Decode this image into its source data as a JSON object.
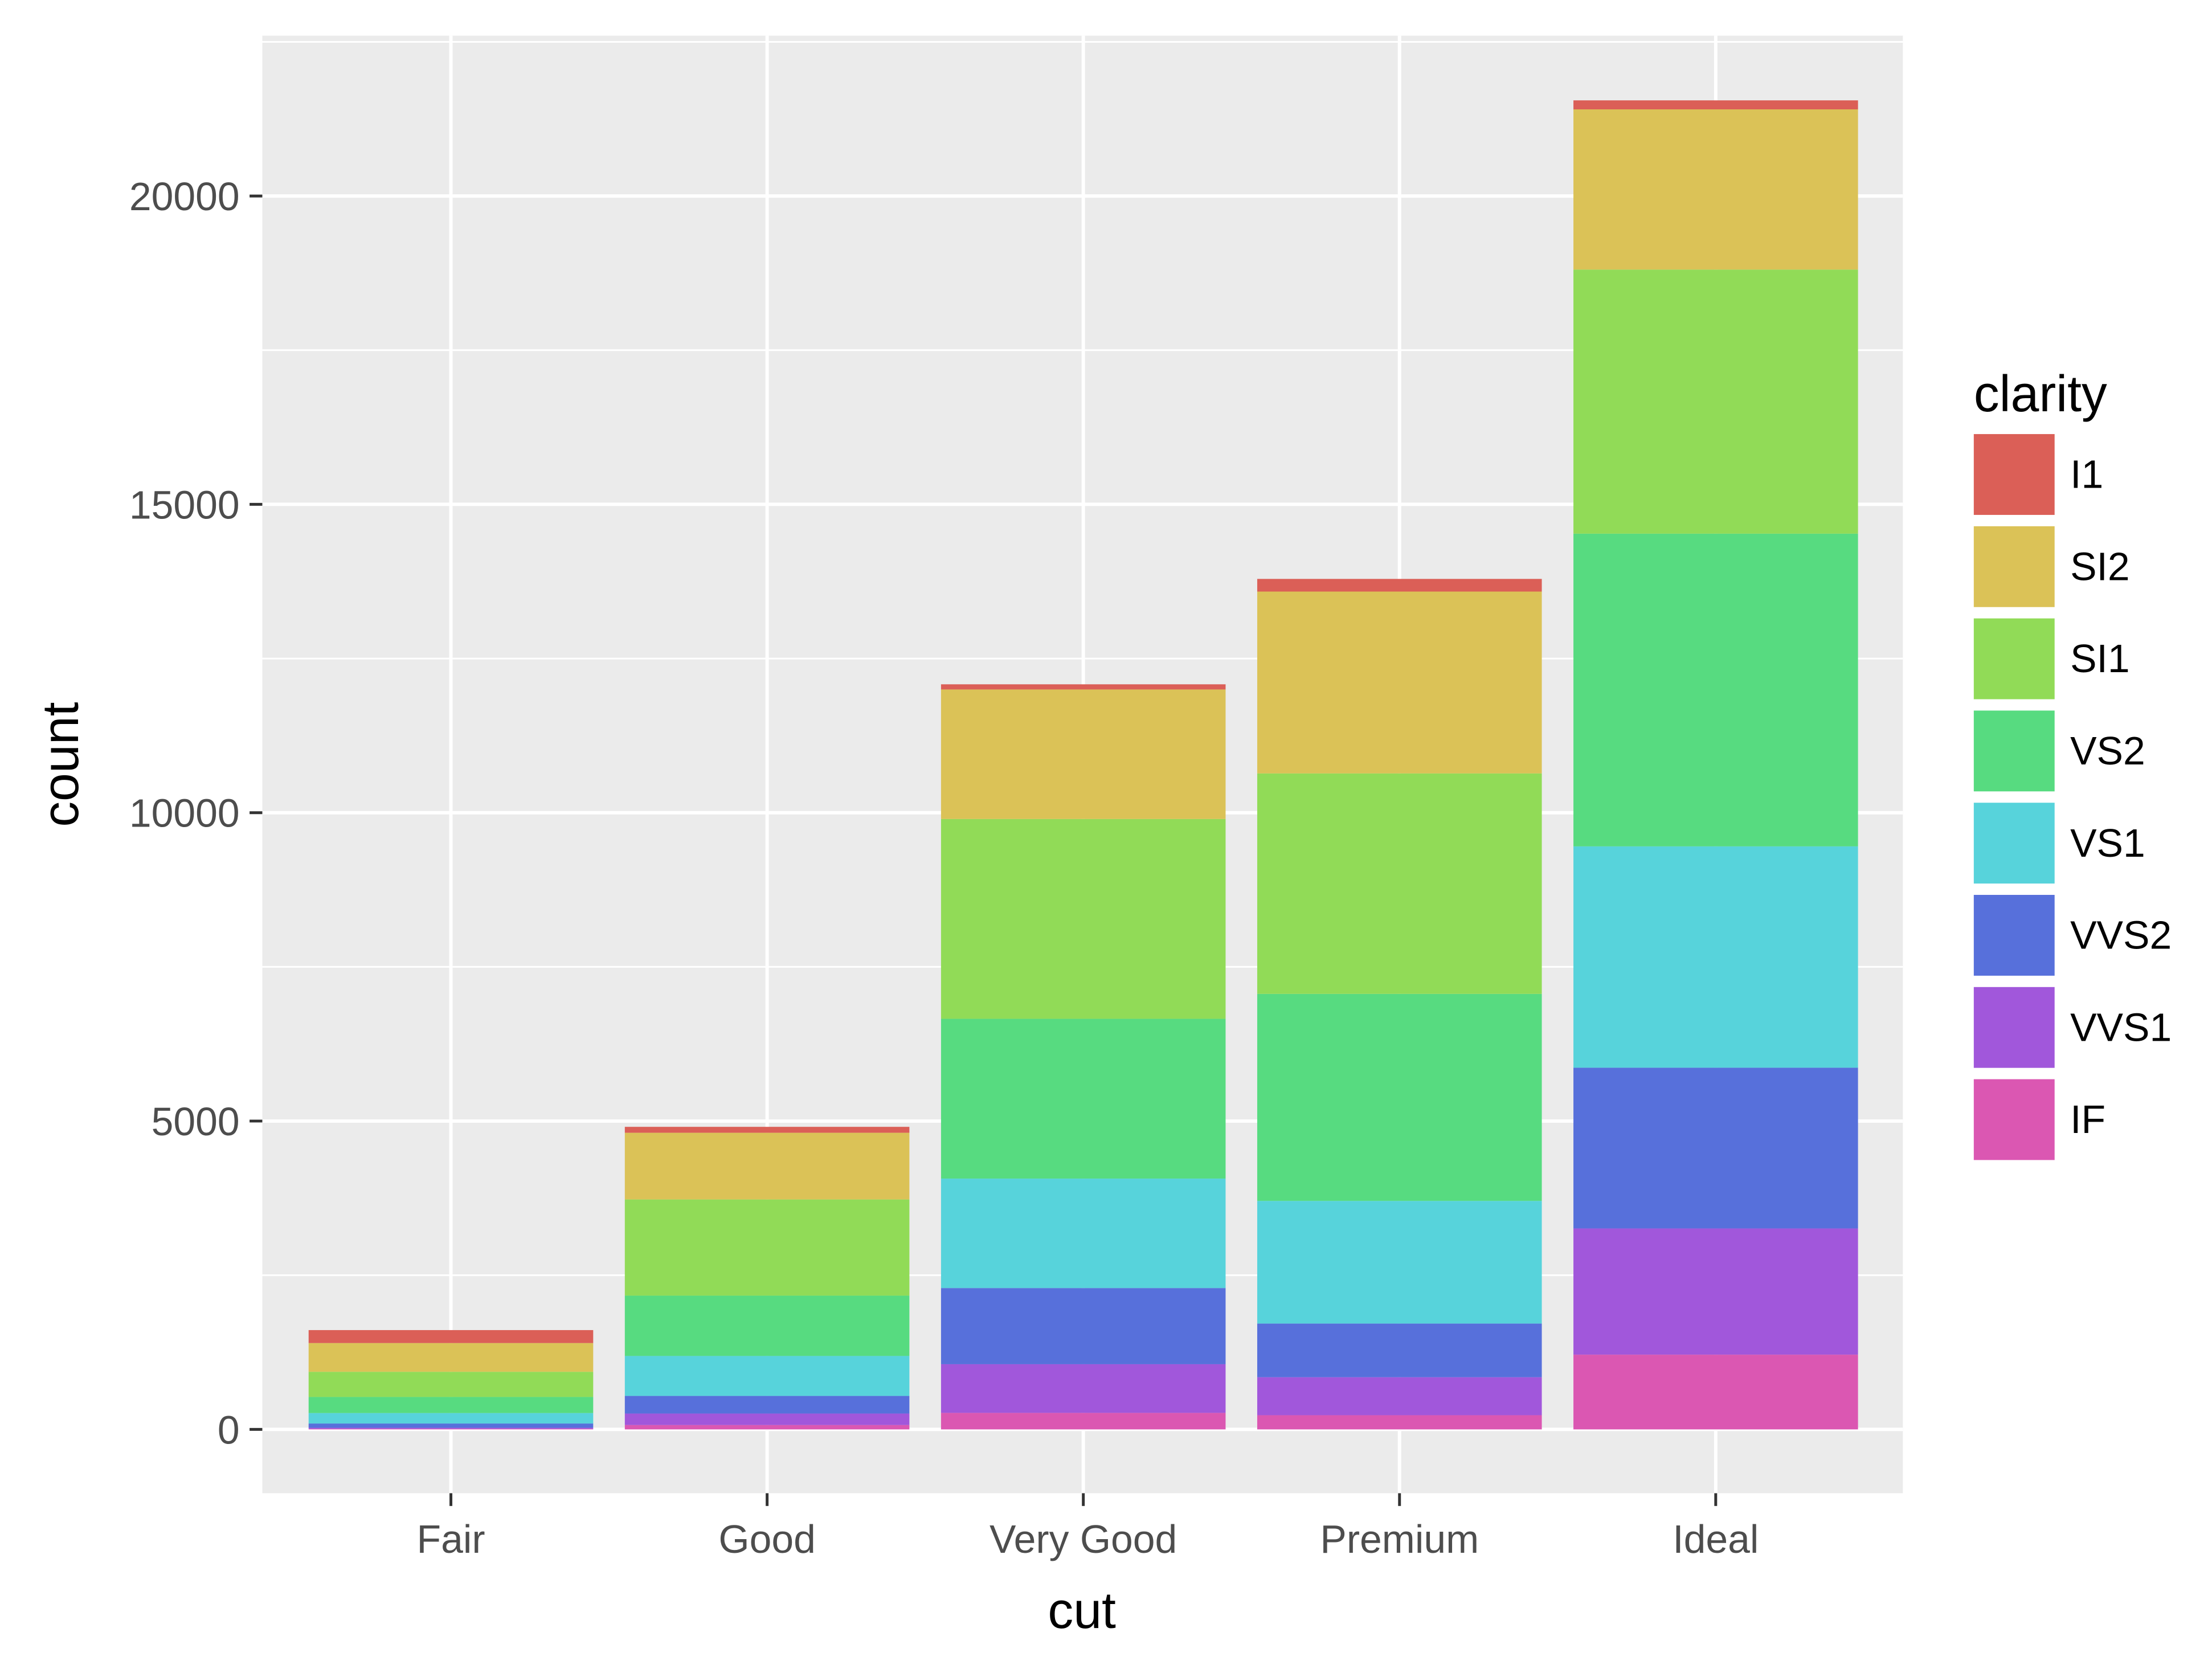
{
  "chart_data": {
    "type": "bar",
    "stacked": true,
    "title": "",
    "xlabel": "cut",
    "ylabel": "count",
    "categories": [
      "Fair",
      "Good",
      "Very Good",
      "Premium",
      "Ideal"
    ],
    "ylim": [
      -1035,
      22600
    ],
    "yticks": [
      0,
      5000,
      10000,
      15000,
      20000
    ],
    "ytick_labels": [
      "0",
      "5000",
      "10000",
      "15000",
      "20000"
    ],
    "grid": true,
    "legend": {
      "title": "clarity",
      "placement": "right"
    },
    "series": [
      {
        "name": "I1",
        "color": "#DB5F57",
        "values": [
          210,
          96,
          84,
          205,
          146
        ]
      },
      {
        "name": "SI2",
        "color": "#DBC257",
        "values": [
          466,
          1081,
          2100,
          2949,
          2598
        ]
      },
      {
        "name": "SI1",
        "color": "#91DB57",
        "values": [
          408,
          1560,
          3240,
          3575,
          4282
        ]
      },
      {
        "name": "VS2",
        "color": "#57DB80",
        "values": [
          261,
          978,
          2591,
          3357,
          5071
        ]
      },
      {
        "name": "VS1",
        "color": "#57D3DB",
        "values": [
          170,
          648,
          1775,
          1989,
          3589
        ]
      },
      {
        "name": "VVS2",
        "color": "#5770DB",
        "values": [
          69,
          286,
          1235,
          870,
          2606
        ]
      },
      {
        "name": "VVS1",
        "color": "#A157DB",
        "values": [
          17,
          186,
          789,
          616,
          2047
        ]
      },
      {
        "name": "IF",
        "color": "#DB57B2",
        "values": [
          9,
          71,
          268,
          230,
          1212
        ]
      }
    ]
  }
}
